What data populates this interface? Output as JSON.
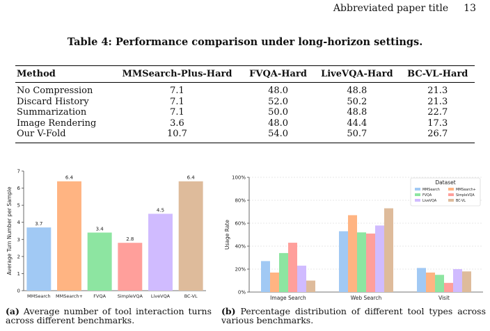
{
  "header": {
    "running_title": "Abbreviated paper title",
    "page_number": "13"
  },
  "table": {
    "caption": "Table 4: Performance comparison under long-horizon settings.",
    "columns": [
      "Method",
      "MMSearch-Plus-Hard",
      "FVQA-Hard",
      "LiveVQA-Hard",
      "BC-VL-Hard"
    ],
    "rows": [
      [
        "No Compression",
        "7.1",
        "48.0",
        "48.8",
        "21.3"
      ],
      [
        "Discard History",
        "7.1",
        "52.0",
        "50.2",
        "21.3"
      ],
      [
        "Summarization",
        "7.1",
        "50.0",
        "48.8",
        "22.7"
      ],
      [
        "Image Rendering",
        "3.6",
        "48.0",
        "44.4",
        "17.3"
      ],
      [
        "Our V-Fold",
        "10.7",
        "54.0",
        "50.7",
        "26.7"
      ]
    ]
  },
  "chart_data": [
    {
      "type": "bar",
      "ylabel": "Average Turn Number per Sample",
      "xlabel": "",
      "ylim": [
        0,
        7
      ],
      "yticks": [
        "0",
        "1",
        "2",
        "3",
        "4",
        "5",
        "6",
        "7"
      ],
      "categories": [
        "MMSearch",
        "MMSearch+",
        "FVQA",
        "SimpleVQA",
        "LiveVQA",
        "BC-VL"
      ],
      "values": [
        3.7,
        6.4,
        3.4,
        2.8,
        4.5,
        6.4
      ],
      "data_labels": [
        "3.7",
        "6.4",
        "3.4",
        "2.8",
        "4.5",
        "6.4"
      ],
      "colors": [
        "#a1c9f4",
        "#ffb482",
        "#8de5a1",
        "#ff9f9b",
        "#d0bbff",
        "#debb9b"
      ],
      "grid": false
    },
    {
      "type": "bar",
      "ylabel": "Usage Rate",
      "xlabel": "",
      "ylim": [
        0,
        100
      ],
      "yticks": [
        "0%",
        "20%",
        "40%",
        "60%",
        "80%",
        "100%"
      ],
      "categories": [
        "Image Search",
        "Web Search",
        "Visit"
      ],
      "legend": {
        "title": "Dataset",
        "position": "top-right"
      },
      "series": [
        {
          "name": "MMSearch",
          "values": [
            27,
            53,
            21
          ],
          "color": "#a1c9f4"
        },
        {
          "name": "MMSearch+",
          "values": [
            17,
            67,
            17
          ],
          "color": "#ffb482"
        },
        {
          "name": "FVQA",
          "values": [
            34,
            52,
            15
          ],
          "color": "#8de5a1"
        },
        {
          "name": "SimpleVQA",
          "values": [
            43,
            51,
            8
          ],
          "color": "#ff9f9b"
        },
        {
          "name": "LiveVQA",
          "values": [
            23,
            58,
            20
          ],
          "color": "#d0bbff"
        },
        {
          "name": "BC-VL",
          "values": [
            10,
            73,
            18
          ],
          "color": "#debb9b"
        }
      ],
      "grid": true
    }
  ],
  "captions": {
    "a_label": "(a)",
    "a_text": "Average number of tool interaction turns across different benchmarks.",
    "b_label": "(b)",
    "b_text": "Percentage distribution of different tool types across various benchmarks."
  }
}
